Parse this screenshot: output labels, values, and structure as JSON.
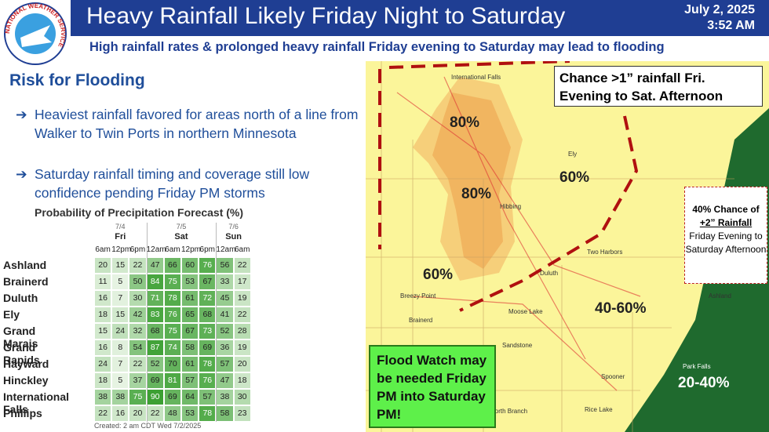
{
  "header": {
    "logo_text": "NATIONAL WEATHER SERVICE",
    "title": "Heavy Rainfall Likely Friday Night to Saturday",
    "date": "July 2, 2025",
    "time": "3:52 AM",
    "subtitle": "High rainfall rates & prolonged heavy rainfall Friday evening to Saturday may lead to flooding"
  },
  "risk": {
    "title": "Risk for Flooding",
    "bullets": [
      "Heaviest rainfall favored for areas north of a line from Walker to Twin Ports in northern Minnesota",
      "Saturday rainfall timing and coverage still low confidence pending Friday PM storms"
    ]
  },
  "table": {
    "title": "Probability of Precipitation Forecast (%)",
    "days": [
      {
        "date": "7/4",
        "day": "Fri",
        "span": 3
      },
      {
        "date": "7/5",
        "day": "Sat",
        "span": 4
      },
      {
        "date": "7/6",
        "day": "Sun",
        "span": 2
      }
    ],
    "hours": [
      "6am",
      "12pm",
      "6pm",
      "12am",
      "6am",
      "12pm",
      "6pm",
      "12am",
      "6am"
    ],
    "rows": [
      {
        "name": "Ashland",
        "values": [
          20,
          15,
          22,
          47,
          66,
          60,
          76,
          56,
          22
        ]
      },
      {
        "name": "Brainerd",
        "values": [
          11,
          5,
          50,
          84,
          75,
          53,
          67,
          33,
          17
        ]
      },
      {
        "name": "Duluth",
        "values": [
          16,
          7,
          30,
          71,
          78,
          61,
          72,
          45,
          19
        ]
      },
      {
        "name": "Ely",
        "values": [
          18,
          15,
          42,
          83,
          76,
          65,
          68,
          41,
          22
        ]
      },
      {
        "name": "Grand Marais",
        "values": [
          15,
          24,
          32,
          68,
          75,
          67,
          73,
          52,
          28
        ]
      },
      {
        "name": "Grand Rapids",
        "values": [
          16,
          8,
          54,
          87,
          74,
          58,
          69,
          36,
          19
        ]
      },
      {
        "name": "Hayward",
        "values": [
          24,
          7,
          22,
          52,
          70,
          61,
          78,
          57,
          20
        ]
      },
      {
        "name": "Hinckley",
        "values": [
          18,
          5,
          37,
          69,
          81,
          57,
          76,
          47,
          18
        ]
      },
      {
        "name": "International Falls",
        "values": [
          38,
          38,
          75,
          90,
          69,
          64,
          57,
          38,
          30
        ]
      },
      {
        "name": "Phillips",
        "values": [
          22,
          16,
          20,
          22,
          48,
          53,
          78,
          58,
          23
        ]
      }
    ],
    "note": "Created: 2 am CDT Wed 7/2/2025"
  },
  "map": {
    "chance_box": "Chance >1” rainfall Fri. Evening to Sat. Afternoon",
    "zones": [
      "80%",
      "80%",
      "60%",
      "60%",
      "40-60%",
      "20-40%"
    ],
    "callout": {
      "line1": "40% Chance of",
      "line2": "+2” Rainfall",
      "line3": "Friday Evening to Saturday Afternoon"
    },
    "flood_watch": "Flood Watch may be needed Friday PM into Saturday PM!",
    "towns": [
      "International Falls",
      "Ely",
      "Hibbing",
      "Two Harbors",
      "Duluth",
      "Breezy Point",
      "Brainerd",
      "Moose Lake",
      "Sandstone",
      "Spooner",
      "Rice Lake",
      "Ashland",
      "North Branch",
      "Park Falls"
    ]
  }
}
